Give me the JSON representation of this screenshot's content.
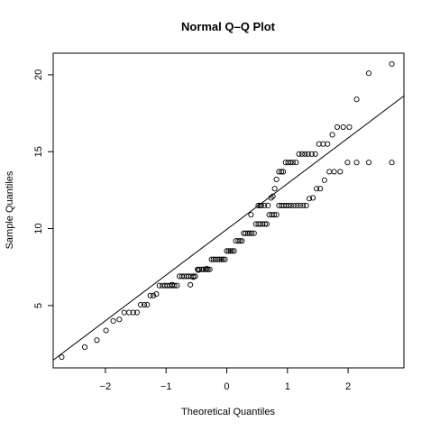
{
  "chart_data": {
    "type": "scatter",
    "title": "Normal Q–Q Plot",
    "xlabel": "Theoretical Quantiles",
    "ylabel": "Sample Quantiles",
    "xlim": [
      -2.86,
      2.92
    ],
    "ylim": [
      0.95,
      21.4
    ],
    "x_ticks": [
      -2,
      -1,
      0,
      1,
      2
    ],
    "x_tick_labels": [
      "−2",
      "−1",
      "0",
      "1",
      "2"
    ],
    "y_ticks": [
      5,
      10,
      15,
      20
    ],
    "y_tick_labels": [
      "5",
      "10",
      "15",
      "20"
    ],
    "grid": false,
    "reference_line": {
      "intercept": 9.95,
      "slope": 2.97
    },
    "points": [
      [
        -2.72,
        1.65
      ],
      [
        -2.34,
        2.3
      ],
      [
        -2.14,
        2.75
      ],
      [
        -1.99,
        3.38
      ],
      [
        -1.87,
        4.0
      ],
      [
        -1.77,
        4.1
      ],
      [
        -1.69,
        4.55
      ],
      [
        -1.61,
        4.55
      ],
      [
        -1.54,
        4.55
      ],
      [
        -1.48,
        4.55
      ],
      [
        -1.42,
        5.05
      ],
      [
        -1.36,
        5.05
      ],
      [
        -1.31,
        5.05
      ],
      [
        -1.26,
        5.65
      ],
      [
        -1.21,
        5.65
      ],
      [
        -1.16,
        5.75
      ],
      [
        -1.11,
        6.3
      ],
      [
        -1.06,
        6.3
      ],
      [
        -1.02,
        6.3
      ],
      [
        -0.98,
        6.3
      ],
      [
        -0.94,
        6.3
      ],
      [
        -0.9,
        6.3
      ],
      [
        -0.86,
        6.3
      ],
      [
        -0.82,
        6.3
      ],
      [
        -0.78,
        6.9
      ],
      [
        -0.74,
        6.9
      ],
      [
        -0.7,
        6.9
      ],
      [
        -0.66,
        6.9
      ],
      [
        -0.63,
        6.9
      ],
      [
        -0.59,
        6.9
      ],
      [
        -0.55,
        6.9
      ],
      [
        -0.52,
        6.9
      ],
      [
        -0.48,
        7.35
      ],
      [
        -0.45,
        7.35
      ],
      [
        -0.41,
        7.35
      ],
      [
        -0.38,
        7.35
      ],
      [
        -0.35,
        7.35
      ],
      [
        -0.31,
        7.35
      ],
      [
        -0.28,
        7.35
      ],
      [
        -0.25,
        8.0
      ],
      [
        -0.22,
        8.0
      ],
      [
        -0.19,
        8.0
      ],
      [
        -0.15,
        8.0
      ],
      [
        -0.12,
        8.0
      ],
      [
        -0.09,
        8.0
      ],
      [
        -0.06,
        8.0
      ],
      [
        -0.03,
        8.0
      ],
      [
        0.0,
        8.55
      ],
      [
        0.03,
        8.55
      ],
      [
        0.06,
        8.55
      ],
      [
        0.09,
        8.55
      ],
      [
        0.12,
        8.55
      ],
      [
        0.15,
        9.2
      ],
      [
        0.19,
        9.2
      ],
      [
        0.22,
        9.2
      ],
      [
        0.25,
        9.2
      ],
      [
        0.28,
        9.7
      ],
      [
        0.31,
        9.7
      ],
      [
        0.35,
        9.7
      ],
      [
        0.38,
        9.7
      ],
      [
        0.41,
        9.7
      ],
      [
        0.45,
        9.7
      ],
      [
        0.48,
        10.3
      ],
      [
        0.52,
        10.3
      ],
      [
        0.55,
        10.3
      ],
      [
        0.59,
        10.3
      ],
      [
        0.63,
        10.3
      ],
      [
        0.66,
        10.3
      ],
      [
        0.7,
        10.9
      ],
      [
        0.74,
        10.9
      ],
      [
        0.78,
        10.9
      ],
      [
        0.82,
        10.9
      ],
      [
        0.86,
        11.5
      ],
      [
        0.9,
        11.5
      ],
      [
        0.94,
        11.5
      ],
      [
        0.98,
        11.5
      ],
      [
        1.02,
        11.5
      ],
      [
        1.06,
        11.5
      ],
      [
        1.11,
        11.5
      ],
      [
        1.16,
        11.5
      ],
      [
        1.21,
        11.5
      ],
      [
        1.26,
        11.5
      ],
      [
        1.31,
        11.5
      ],
      [
        1.36,
        11.95
      ],
      [
        1.42,
        12.0
      ],
      [
        1.48,
        12.6
      ],
      [
        1.54,
        12.6
      ],
      [
        1.61,
        13.15
      ],
      [
        1.69,
        13.7
      ],
      [
        1.77,
        13.7
      ],
      [
        1.87,
        13.7
      ],
      [
        1.99,
        14.3
      ],
      [
        2.14,
        14.3
      ],
      [
        2.34,
        14.3
      ],
      [
        2.72,
        14.3
      ],
      [
        -0.55,
        6.85
      ],
      [
        -0.6,
        6.35
      ],
      [
        -0.9,
        6.35
      ],
      [
        -0.47,
        7.3
      ],
      [
        -0.33,
        7.4
      ],
      [
        0.4,
        10.9
      ],
      [
        0.55,
        11.5
      ],
      [
        0.52,
        11.5
      ],
      [
        0.57,
        11.5
      ],
      [
        0.62,
        11.5
      ],
      [
        0.68,
        11.5
      ],
      [
        0.73,
        12.0
      ],
      [
        0.76,
        12.1
      ],
      [
        0.79,
        12.6
      ],
      [
        0.82,
        13.2
      ],
      [
        0.86,
        13.7
      ],
      [
        0.9,
        13.7
      ],
      [
        0.93,
        13.7
      ],
      [
        0.97,
        14.3
      ],
      [
        1.01,
        14.3
      ],
      [
        1.05,
        14.3
      ],
      [
        1.09,
        14.3
      ],
      [
        1.14,
        14.3
      ],
      [
        1.19,
        14.85
      ],
      [
        1.24,
        14.85
      ],
      [
        1.29,
        14.85
      ],
      [
        1.34,
        14.85
      ],
      [
        1.4,
        14.85
      ],
      [
        1.46,
        14.85
      ],
      [
        1.52,
        15.5
      ],
      [
        1.59,
        15.5
      ],
      [
        1.66,
        15.5
      ],
      [
        1.74,
        16.1
      ],
      [
        1.82,
        16.6
      ],
      [
        1.92,
        16.6
      ],
      [
        2.02,
        16.6
      ],
      [
        2.14,
        18.4
      ],
      [
        2.34,
        20.1
      ],
      [
        2.72,
        20.7
      ]
    ]
  }
}
